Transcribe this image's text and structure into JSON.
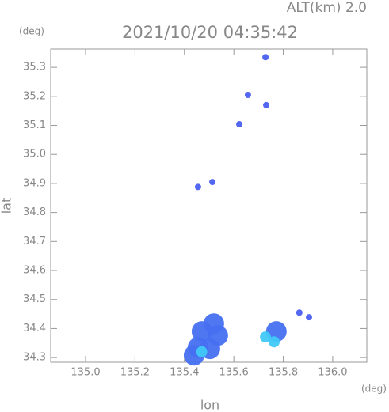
{
  "chart_data": {
    "type": "scatter",
    "title": "2021/10/20 04:35:42",
    "subtitle": "ALT(km) 2.0",
    "x_label": "lon",
    "y_label": "lat",
    "x_unit": "(deg)",
    "y_unit": "(deg)",
    "xlim": [
      134.859,
      136.138
    ],
    "ylim": [
      34.284,
      35.363
    ],
    "xticks": [
      {
        "value": 135.0,
        "label": "135.0"
      },
      {
        "value": 135.2,
        "label": "135.2"
      },
      {
        "value": 135.4,
        "label": "135.4"
      },
      {
        "value": 135.6,
        "label": "135.6"
      },
      {
        "value": 135.8,
        "label": "135.8"
      },
      {
        "value": 136.0,
        "label": "136.0"
      }
    ],
    "yticks": [
      {
        "value": 34.3,
        "label": "34.3"
      },
      {
        "value": 34.4,
        "label": "34.4"
      },
      {
        "value": 34.5,
        "label": "34.5"
      },
      {
        "value": 34.6,
        "label": "34.6"
      },
      {
        "value": 34.7,
        "label": "34.7"
      },
      {
        "value": 34.8,
        "label": "34.8"
      },
      {
        "value": 34.9,
        "label": "34.9"
      },
      {
        "value": 35.0,
        "label": "35.0"
      },
      {
        "value": 35.1,
        "label": "35.1"
      },
      {
        "value": 35.2,
        "label": "35.2"
      },
      35.3
    ],
    "series": [
      {
        "color": "#4a5ff0",
        "x": [
          135.728,
          135.657,
          135.731,
          135.622,
          135.513,
          135.455,
          135.865,
          135.904
        ],
        "values": [
          35.335,
          35.205,
          35.17,
          35.104,
          34.905,
          34.888,
          34.455,
          34.439
        ]
      },
      {
        "color": "#4670f0",
        "x": [
          135.519,
          135.471,
          135.535,
          135.455,
          135.503,
          135.439,
          135.772
        ],
        "values": [
          34.417,
          34.39,
          34.376,
          34.335,
          34.33,
          34.308,
          34.39
        ]
      },
      {
        "color": "#40c8f8",
        "x": [
          135.763,
          135.728,
          135.47
        ],
        "values": [
          34.354,
          34.371,
          34.32
        ]
      }
    ]
  }
}
